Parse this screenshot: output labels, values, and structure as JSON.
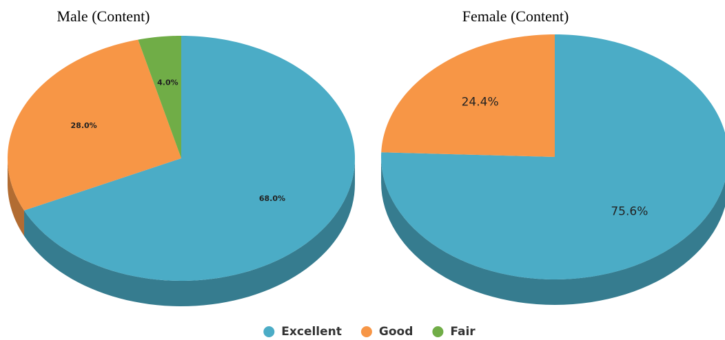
{
  "chart_data": [
    {
      "type": "pie",
      "title": "Male (Content)",
      "categories": [
        "Excellent",
        "Good",
        "Fair"
      ],
      "values": [
        68.0,
        28.0,
        4.0
      ],
      "value_labels": [
        "68.0%",
        "28.0%",
        "4.0%"
      ],
      "colors": [
        "#4bacc6",
        "#f79646",
        "#70ad47"
      ]
    },
    {
      "type": "pie",
      "title": "Female (Content)",
      "categories": [
        "Excellent",
        "Good"
      ],
      "values": [
        75.6,
        24.4
      ],
      "value_labels": [
        "75.6%",
        "24.4%"
      ],
      "colors": [
        "#4bacc6",
        "#f79646"
      ]
    }
  ]
}
